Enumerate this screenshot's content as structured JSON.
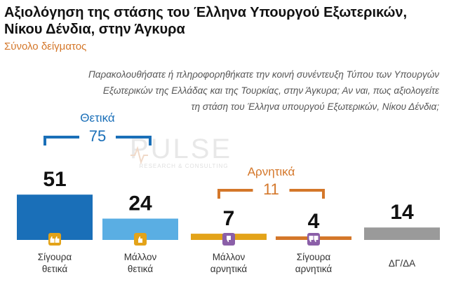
{
  "title": "Αξιολόγηση της στάσης του Έλληνα Υπουργού Εξωτερικών, Νίκου Δένδια, στην Άγκυρα",
  "subtitle": "Σύνολο δείγματος",
  "question_lines": [
    "Παρακολουθήσατε ή πληροφορηθήκατε την κοινή συνέντευξη Τύπου των Υπουργών",
    "Εξωτερικών της Ελλάδας και της Τουρκίας, στην Άγκυρα; Αν ναι, πως αξιολογείτε",
    "τη στάση του Έλληνα υπουργού Εξωτερικών, Νίκου Δένδια;"
  ],
  "watermark": {
    "main": "PULSE",
    "sub": "RESEARCH & CONSULTING"
  },
  "chart_data": {
    "type": "bar",
    "categories": [
      [
        "Σίγουρα",
        "θετικά"
      ],
      [
        "Μάλλον",
        "θετικά"
      ],
      [
        "Μάλλον",
        "αρνητικά"
      ],
      [
        "Σίγουρα",
        "αρνητικά"
      ],
      [
        "ΔΓ/ΔΑ"
      ]
    ],
    "values": [
      51,
      24,
      7,
      4,
      14
    ],
    "colors": [
      "#1a6fb8",
      "#5aaee3",
      "#e3a319",
      "#d4772a",
      "#9a9a9a"
    ],
    "icons": [
      "double-thumbs-up-icon",
      "thumbs-up-icon",
      "thumbs-down-icon",
      "double-thumbs-down-icon",
      null
    ],
    "icon_colors": [
      "#e3a319",
      "#e3a319",
      "#8b5fa8",
      "#8b5fa8",
      null
    ],
    "groups": [
      {
        "label": "Θετικά",
        "total": "75",
        "color": "#1a6fb8",
        "from": 0,
        "to": 1
      },
      {
        "label": "Αρνητικά",
        "total": "11",
        "color": "#d4772a",
        "from": 2,
        "to": 3
      }
    ],
    "ylim": [
      0,
      100
    ],
    "grid": false,
    "legend": "none"
  }
}
